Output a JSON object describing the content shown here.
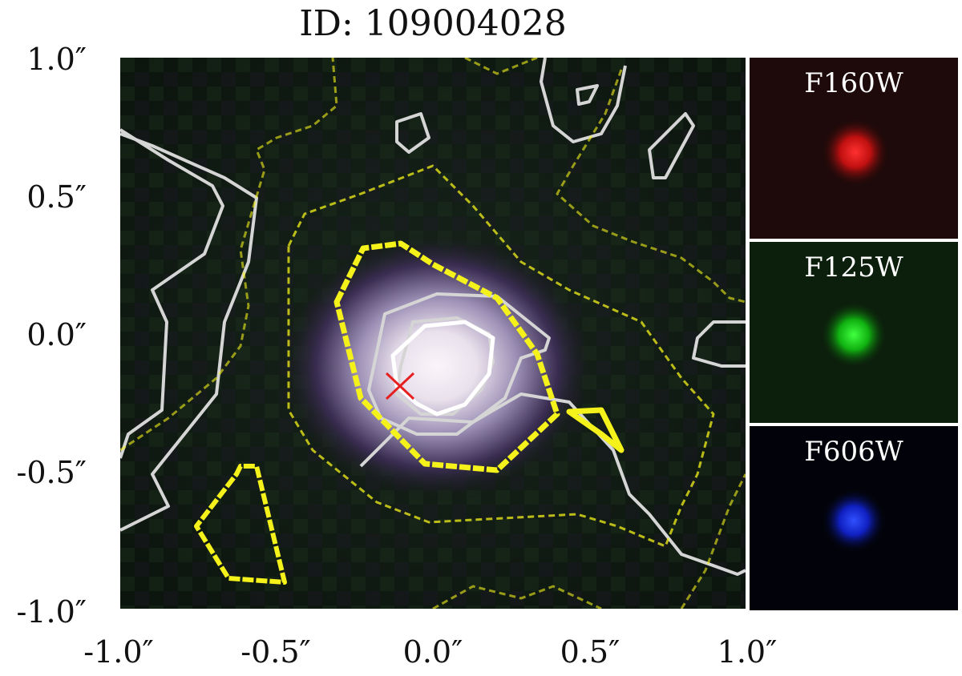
{
  "title": "ID: 109004028",
  "axes": {
    "y_ticks": [
      "1.0″",
      "0.5″",
      "0.0″",
      "-0.5″",
      "-1.0″"
    ],
    "x_ticks": [
      "-1.0″",
      "-0.5″",
      "0.0″",
      "0.5″",
      "1.0″"
    ]
  },
  "colors": {
    "contour_primary": "#f4f21a",
    "contour_secondary": "#d7d7d7",
    "marker": "#e62020"
  },
  "marker": {
    "type": "cross",
    "icon": "red-x-marker"
  },
  "thumbnails": [
    {
      "filter": "F160W",
      "color": "#ff2222"
    },
    {
      "filter": "F125W",
      "color": "#22ff22"
    },
    {
      "filter": "F606W",
      "color": "#2244ff"
    }
  ]
}
